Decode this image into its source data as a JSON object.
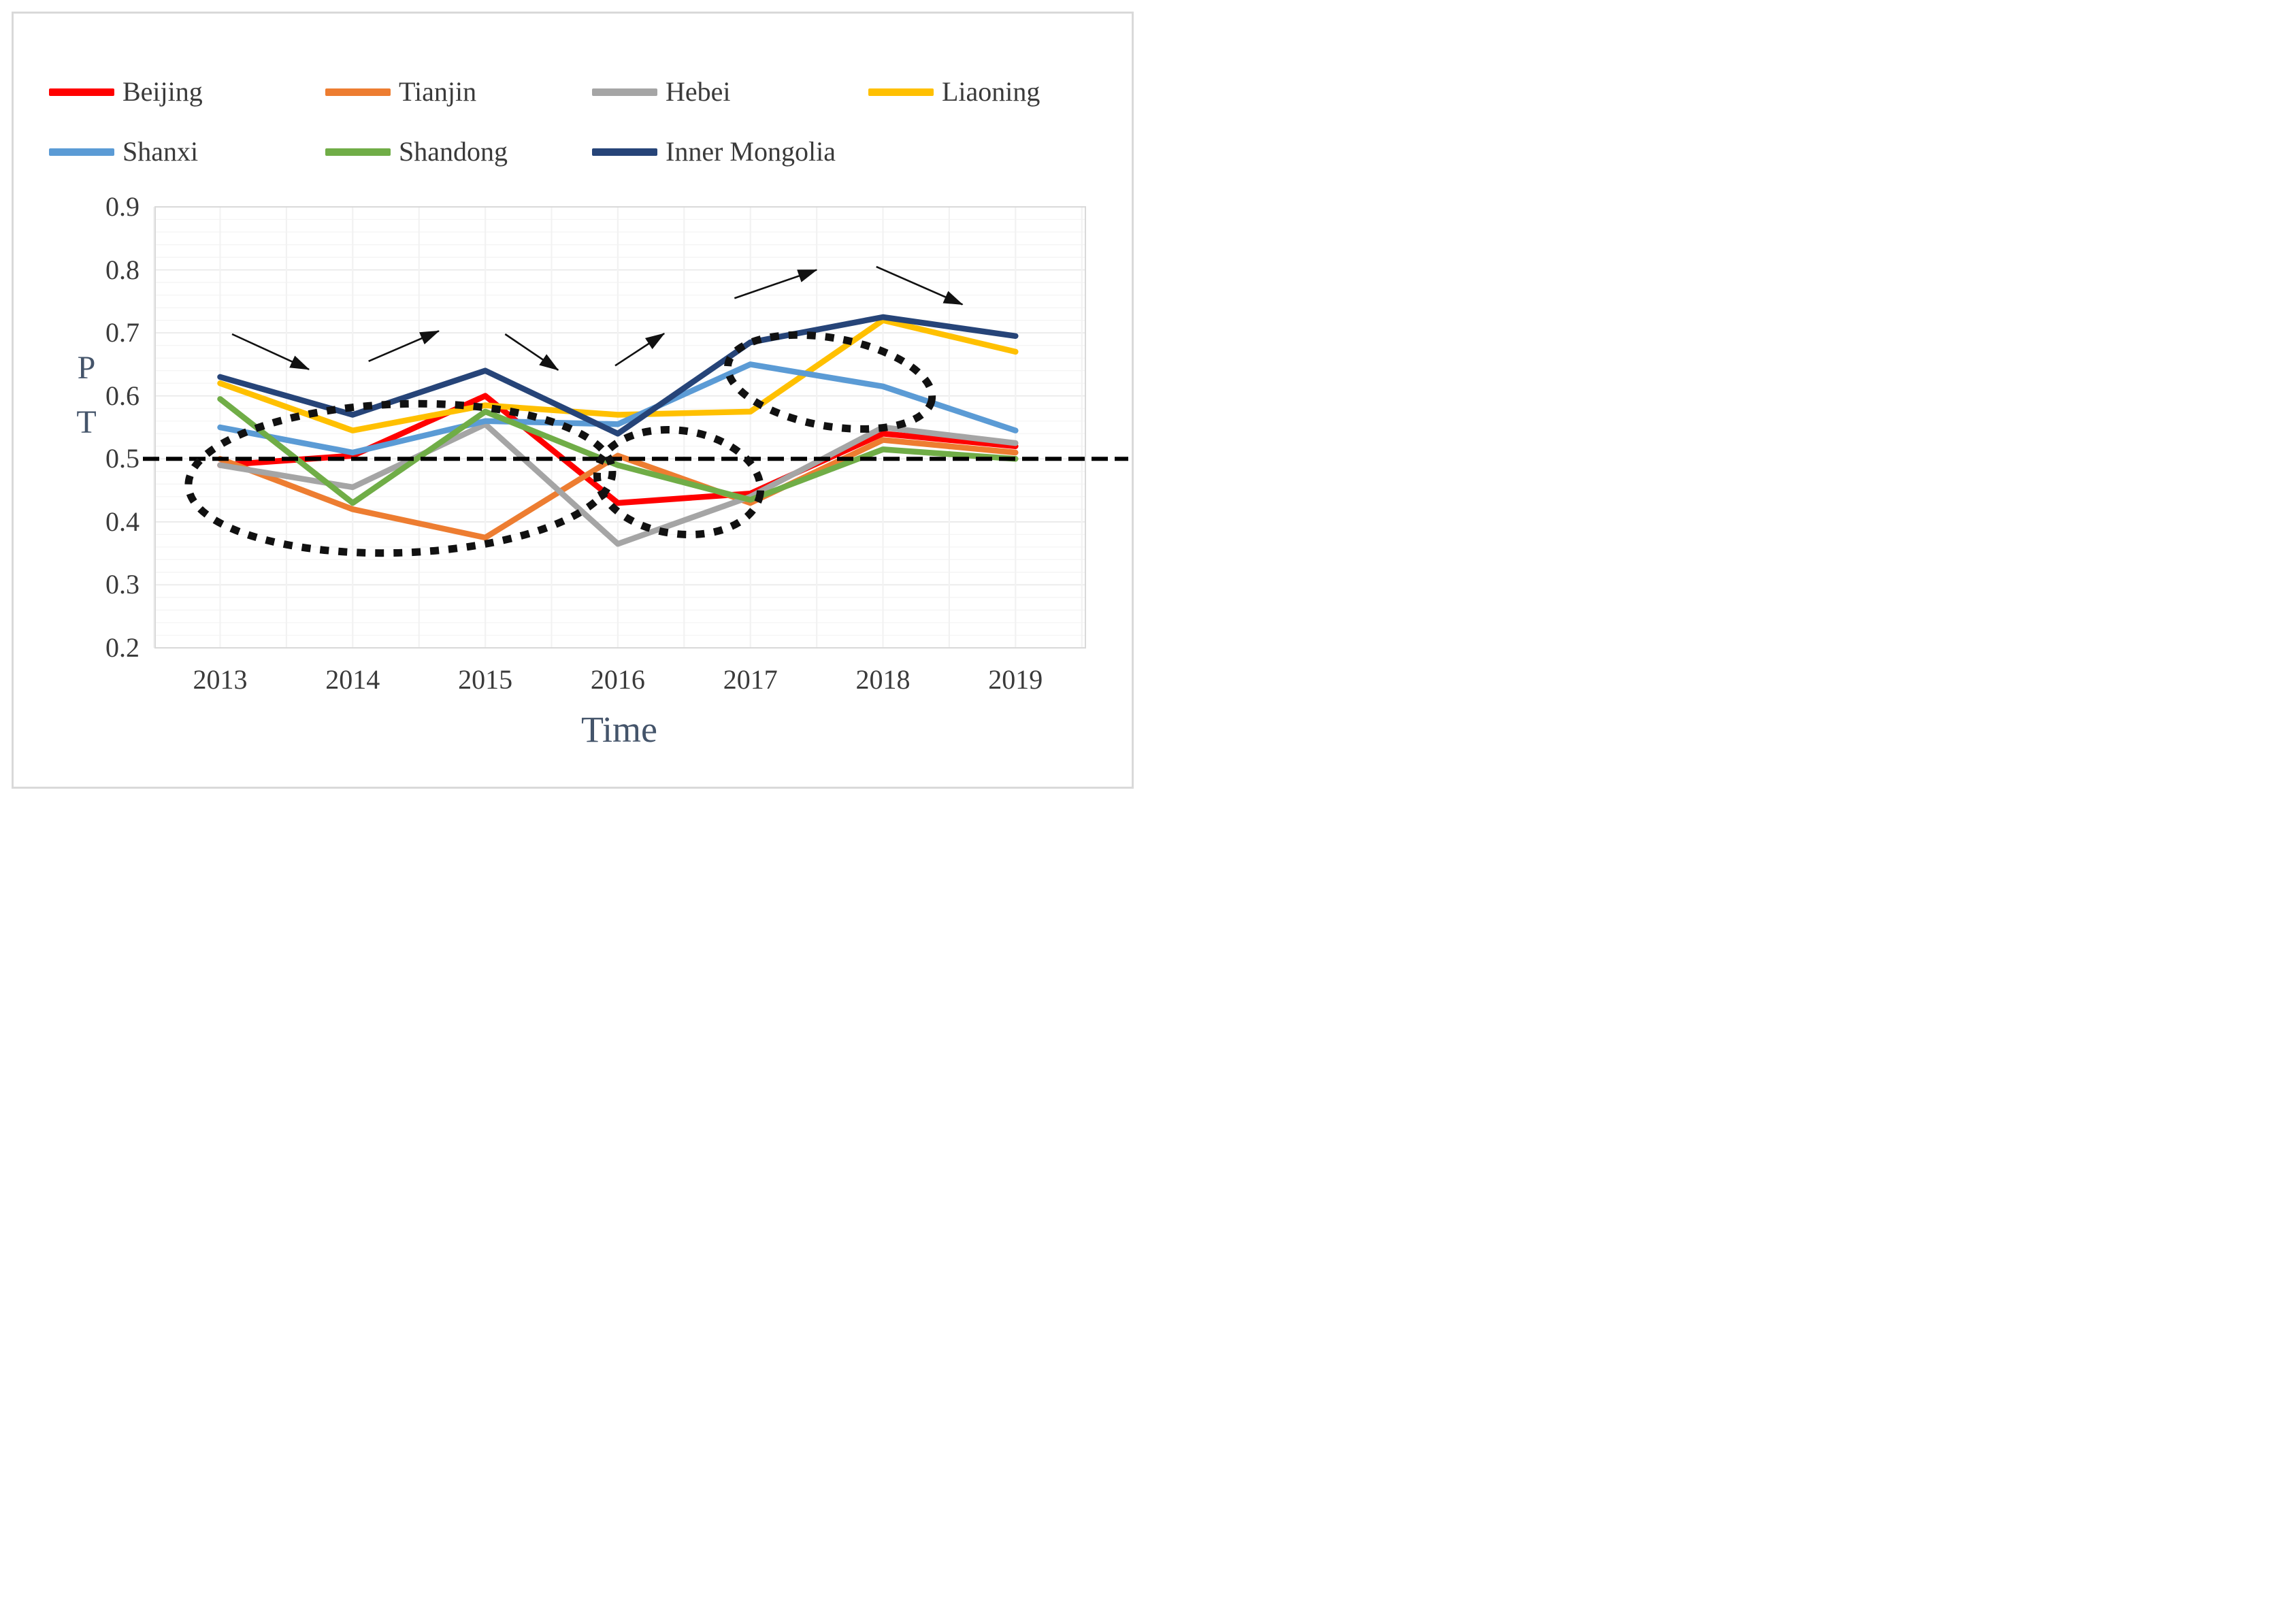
{
  "figure": {
    "background": "#ffffff",
    "frame_color": "#d9d9d9",
    "text_color": "#3a3a3a",
    "axis_title_color": "#44546a"
  },
  "chart_data": {
    "type": "line",
    "x": [
      2013,
      2014,
      2015,
      2016,
      2017,
      2018,
      2019
    ],
    "x_ticks": [
      "2013",
      "2014",
      "2015",
      "2016",
      "2017",
      "2018",
      "2019"
    ],
    "y_ticks": [
      "0.9",
      "0.8",
      "0.7",
      "0.6",
      "0.5",
      "0.4",
      "0.3",
      "0.2"
    ],
    "ylim": [
      0.2,
      0.9
    ],
    "x_axis_title": "Time",
    "y_axis_title_line1": "P",
    "y_axis_title_line2": "T",
    "grid": {
      "minor_step": 0.02,
      "major_step": 0.1,
      "minor_color": "#f4f4f4",
      "major_color": "#e9e9e9",
      "vertical_color": "#f2f2f2",
      "border_color": "#d9d9d9"
    },
    "legend_position": "top",
    "series": [
      {
        "name": "Beijing",
        "color": "#ff0000",
        "values": [
          0.49,
          0.505,
          0.6,
          0.43,
          0.445,
          0.54,
          0.52
        ]
      },
      {
        "name": "Tianjin",
        "color": "#ed7d31",
        "values": [
          0.5,
          0.42,
          0.375,
          0.505,
          0.43,
          0.53,
          0.51
        ]
      },
      {
        "name": "Hebei",
        "color": "#a5a5a5",
        "values": [
          0.49,
          0.455,
          0.555,
          0.365,
          0.44,
          0.55,
          0.525
        ]
      },
      {
        "name": "Liaoning",
        "color": "#ffc000",
        "values": [
          0.62,
          0.545,
          0.585,
          0.57,
          0.575,
          0.72,
          0.67
        ]
      },
      {
        "name": "Shanxi",
        "color": "#5b9bd5",
        "values": [
          0.55,
          0.51,
          0.56,
          0.555,
          0.65,
          0.615,
          0.545
        ]
      },
      {
        "name": "Shandong",
        "color": "#70ad47",
        "values": [
          0.595,
          0.43,
          0.575,
          0.49,
          0.435,
          0.515,
          0.5
        ]
      },
      {
        "name": "Inner Mongolia",
        "color": "#264478",
        "values": [
          0.63,
          0.57,
          0.64,
          0.54,
          0.685,
          0.725,
          0.695
        ]
      }
    ],
    "reference_line": {
      "value": 0.5,
      "style": "dashed",
      "color": "#000000"
    },
    "annotations": {
      "ellipses": [
        {
          "cx_year": 2014.36,
          "cy_value": 0.469,
          "rx_years": 1.6,
          "ry_value": 0.118,
          "rotate_deg": -2
        },
        {
          "cx_year": 2016.46,
          "cy_value": 0.463,
          "rx_years": 0.62,
          "ry_value": 0.082,
          "rotate_deg": 8
        },
        {
          "cx_year": 2017.6,
          "cy_value": 0.622,
          "rx_years": 0.78,
          "ry_value": 0.07,
          "rotate_deg": 10
        }
      ],
      "arrows": [
        {
          "from": [
            2013.09,
            0.698
          ],
          "to": [
            2013.67,
            0.642
          ],
          "direction": "down"
        },
        {
          "from": [
            2014.12,
            0.655
          ],
          "to": [
            2014.65,
            0.703
          ],
          "direction": "up"
        },
        {
          "from": [
            2015.15,
            0.698
          ],
          "to": [
            2015.55,
            0.641
          ],
          "direction": "down"
        },
        {
          "from": [
            2015.98,
            0.648
          ],
          "to": [
            2016.35,
            0.699
          ],
          "direction": "up"
        },
        {
          "from": [
            2016.88,
            0.755
          ],
          "to": [
            2017.5,
            0.8
          ],
          "direction": "up"
        },
        {
          "from": [
            2017.95,
            0.805
          ],
          "to": [
            2018.6,
            0.745
          ],
          "direction": "down"
        }
      ]
    }
  }
}
